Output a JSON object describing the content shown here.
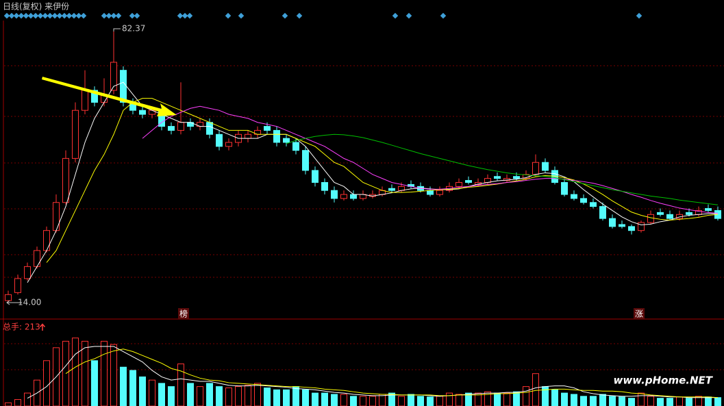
{
  "chart_data": [
    {
      "type": "candlestick",
      "title": "日线(复权) 来伊份",
      "up_color": "#ff3232",
      "down_color": "#54fcfc",
      "ylim": [
        10.07,
        84.42
      ],
      "high_label": 82.37,
      "low_label": {
        "value": 14,
        "label": "14.00"
      },
      "events": [
        "榜",
        "涨"
      ],
      "open": [
        14.5,
        16.5,
        20,
        23,
        27,
        32,
        39,
        50,
        62,
        67,
        64,
        67,
        72,
        64,
        62,
        61,
        62,
        58,
        57,
        59,
        58,
        59,
        56,
        53,
        54,
        55,
        56,
        58,
        57,
        55,
        54,
        52,
        47,
        44,
        42,
        40,
        41,
        40,
        40.5,
        41,
        42.5,
        42,
        43.5,
        43,
        42,
        41,
        42,
        43,
        44.5,
        43.5,
        44,
        45.5,
        44.5,
        45.5,
        45,
        46,
        49,
        47,
        44,
        41,
        40,
        39,
        38,
        35,
        33.5,
        33,
        32,
        34,
        36.5,
        36,
        35,
        36.5,
        36,
        37.5,
        37
      ],
      "high": [
        17,
        21,
        24,
        28,
        33,
        41,
        52,
        64,
        72,
        68,
        70,
        82.37,
        73,
        65,
        63,
        63,
        62.5,
        59,
        69,
        60,
        60,
        60,
        57,
        55,
        57,
        57,
        58,
        59,
        58,
        56,
        55,
        53,
        48,
        45,
        43,
        42,
        42,
        42,
        42,
        43,
        43.5,
        44,
        44.5,
        44,
        43,
        43,
        44,
        45,
        45.5,
        45,
        46,
        46.5,
        46,
        46.5,
        47,
        51,
        50,
        48,
        45,
        42,
        41,
        40,
        39,
        36,
        34.5,
        33.5,
        34.5,
        37,
        37.5,
        37,
        37,
        37.5,
        38,
        38.5,
        38
      ],
      "low": [
        14,
        16,
        19.5,
        22.5,
        26.5,
        31.5,
        38.5,
        49,
        61,
        63,
        63,
        66,
        63,
        61,
        60,
        60,
        57,
        56,
        56,
        57,
        57,
        55,
        52,
        52,
        53,
        54,
        55,
        56,
        53,
        53,
        51,
        46,
        43,
        41,
        39,
        39.5,
        39.5,
        39.5,
        40,
        40.5,
        41.5,
        41.5,
        42.5,
        41.5,
        40.5,
        40.5,
        41.5,
        42.5,
        43.5,
        43,
        43.5,
        44.5,
        44,
        44.5,
        44.5,
        45.5,
        46.5,
        43.5,
        40.5,
        39.5,
        38.5,
        37.5,
        34.5,
        32.5,
        32.5,
        31,
        31.5,
        33.5,
        35.5,
        34.5,
        34.5,
        35.5,
        35.5,
        36.5,
        34.5
      ],
      "close": [
        16,
        20,
        23,
        27,
        32,
        39,
        50,
        62,
        67,
        64,
        66,
        74,
        64,
        62,
        61,
        62,
        58,
        57,
        59,
        58,
        59,
        56,
        53,
        54,
        56,
        56,
        57,
        57,
        54,
        54,
        52,
        47,
        44,
        42,
        40,
        41,
        40,
        41,
        41,
        42,
        42,
        43,
        43,
        42,
        41,
        42,
        43,
        44,
        44,
        44,
        45,
        45,
        45,
        45,
        46,
        49,
        47,
        44,
        41,
        40,
        39,
        38,
        35,
        33,
        33,
        32,
        34,
        36,
        36,
        35,
        36,
        36,
        37,
        37,
        35
      ],
      "series": [
        {
          "color": "#ffffff",
          "values": [
            null,
            null,
            19,
            23,
            27,
            32,
            38,
            46,
            54,
            60,
            64,
            68,
            69,
            66,
            63,
            62,
            61,
            60,
            59,
            59,
            58,
            58,
            57,
            56,
            55,
            55,
            55,
            56,
            56,
            56,
            55,
            53,
            50,
            47,
            44,
            43,
            41,
            41,
            40.6,
            41,
            41.4,
            42,
            42.4,
            42.6,
            42.4,
            42.2,
            42.2,
            42.4,
            43,
            43.6,
            44,
            44.4,
            44.6,
            44.8,
            45.2,
            46,
            46.4,
            46.2,
            45.4,
            44.2,
            42.2,
            40.4,
            38.6,
            37,
            35.4,
            34.2,
            33.4,
            33.6,
            34.2,
            34.6,
            35.4,
            35.8,
            36,
            36.2,
            36.2
          ]
        },
        {
          "color": "#ffff00",
          "values": [
            null,
            null,
            null,
            null,
            24,
            27,
            32,
            37,
            42,
            47,
            51,
            56,
            62,
            64,
            65,
            65,
            64,
            63,
            62,
            61,
            60,
            59,
            58,
            57,
            57,
            57,
            56,
            56,
            56,
            56,
            55,
            54,
            53,
            51,
            49,
            48,
            46,
            44,
            43,
            42,
            41.5,
            41.5,
            41.6,
            41.8,
            42,
            42.2,
            42.3,
            42.5,
            42.8,
            43,
            43.3,
            43.6,
            44,
            44.4,
            44.8,
            45.4,
            45.7,
            45.6,
            45.2,
            44.6,
            43.6,
            42.4,
            41,
            39.4,
            38,
            36.6,
            35.8,
            35.2,
            34.8,
            34.6,
            34.8,
            35,
            35.3,
            35.8,
            36
          ]
        },
        {
          "color": "#ff40ff",
          "values": [
            null,
            null,
            null,
            null,
            null,
            null,
            null,
            null,
            null,
            null,
            null,
            null,
            null,
            null,
            55,
            57,
            59,
            60.5,
            61.5,
            62.5,
            63,
            62.5,
            62,
            61,
            60.5,
            60,
            59,
            58.5,
            58,
            57,
            56,
            55,
            54,
            53,
            51.5,
            50,
            49,
            47.5,
            46,
            45,
            44,
            43.5,
            43,
            42.5,
            42.3,
            42.3,
            42.5,
            42.8,
            43,
            43.3,
            43.5,
            43.7,
            44,
            44.2,
            44.5,
            44.8,
            45,
            45,
            44.8,
            44.5,
            44.2,
            43.8,
            43.2,
            42.5,
            41.8,
            41,
            40.3,
            39.5,
            38.8,
            38.2,
            37.6,
            37.2,
            36.8,
            36.5,
            36.3
          ]
        },
        {
          "color": "#00c000",
          "values": [
            null,
            null,
            null,
            null,
            null,
            null,
            null,
            null,
            null,
            null,
            null,
            null,
            null,
            null,
            null,
            null,
            null,
            null,
            null,
            null,
            null,
            null,
            null,
            null,
            null,
            null,
            null,
            null,
            null,
            53.7,
            54.5,
            55,
            55.5,
            55.8,
            56,
            55.9,
            55.6,
            55.2,
            54.6,
            54,
            53.3,
            52.6,
            51.9,
            51.2,
            50.6,
            50,
            49.4,
            48.8,
            48.2,
            47.7,
            47.2,
            46.8,
            46.4,
            46.1,
            45.9,
            45.7,
            45.5,
            45.2,
            44.7,
            44.2,
            43.7,
            43.2,
            42.7,
            42.2,
            41.8,
            41.4,
            41,
            40.6,
            40.3,
            40,
            39.6,
            39.3,
            39,
            38.7,
            38.4
          ]
        }
      ]
    },
    {
      "type": "bar",
      "title": "总手: 213",
      "ylim": [
        0,
        130
      ],
      "values": [
        5,
        10,
        20,
        40,
        70,
        90,
        100,
        105,
        100,
        70,
        100,
        95,
        60,
        55,
        45,
        40,
        35,
        30,
        65,
        35,
        30,
        35,
        30,
        28,
        30,
        32,
        35,
        28,
        25,
        25,
        30,
        25,
        20,
        20,
        18,
        18,
        15,
        15,
        15,
        18,
        20,
        15,
        18,
        15,
        14,
        15,
        20,
        18,
        20,
        20,
        22,
        20,
        20,
        22,
        30,
        50,
        30,
        25,
        20,
        18,
        15,
        15,
        18,
        15,
        14,
        12,
        20,
        15,
        12,
        12,
        14,
        12,
        15,
        14,
        13
      ],
      "series": [
        {
          "color": "#ffffff",
          "values": [
            null,
            null,
            12,
            20,
            30,
            45,
            62,
            80,
            90,
            92,
            92,
            92,
            84,
            76,
            68,
            55,
            45,
            40,
            42,
            40,
            38,
            38,
            35,
            32,
            31,
            31,
            32,
            31,
            30,
            29,
            27,
            26,
            25,
            23,
            21,
            20,
            18,
            17,
            16,
            16,
            17,
            17,
            17,
            17,
            16,
            15,
            16,
            17,
            18,
            19,
            20,
            20,
            21,
            21,
            23,
            28,
            30,
            31,
            31,
            28,
            22,
            19,
            17,
            16,
            15,
            15,
            16,
            16,
            15,
            14,
            14,
            13,
            13,
            13,
            13
          ]
        },
        {
          "color": "#ffff00",
          "values": [
            null,
            null,
            null,
            null,
            null,
            null,
            50,
            60,
            68,
            73,
            80,
            85,
            88,
            84,
            78,
            72,
            66,
            58,
            54,
            48,
            43,
            40,
            39,
            36,
            35,
            34,
            33,
            32,
            31,
            30,
            30,
            29,
            28,
            26,
            25,
            24,
            22,
            20,
            19,
            18,
            18,
            17,
            17,
            17,
            17,
            16,
            16,
            17,
            17,
            17,
            18,
            19,
            19,
            20,
            21,
            24,
            25,
            26,
            26,
            25,
            24,
            24,
            23,
            23,
            22,
            20,
            19,
            17,
            16,
            15,
            14,
            14,
            14,
            14,
            13
          ]
        }
      ]
    }
  ],
  "watermark": "www.pHome.NET"
}
